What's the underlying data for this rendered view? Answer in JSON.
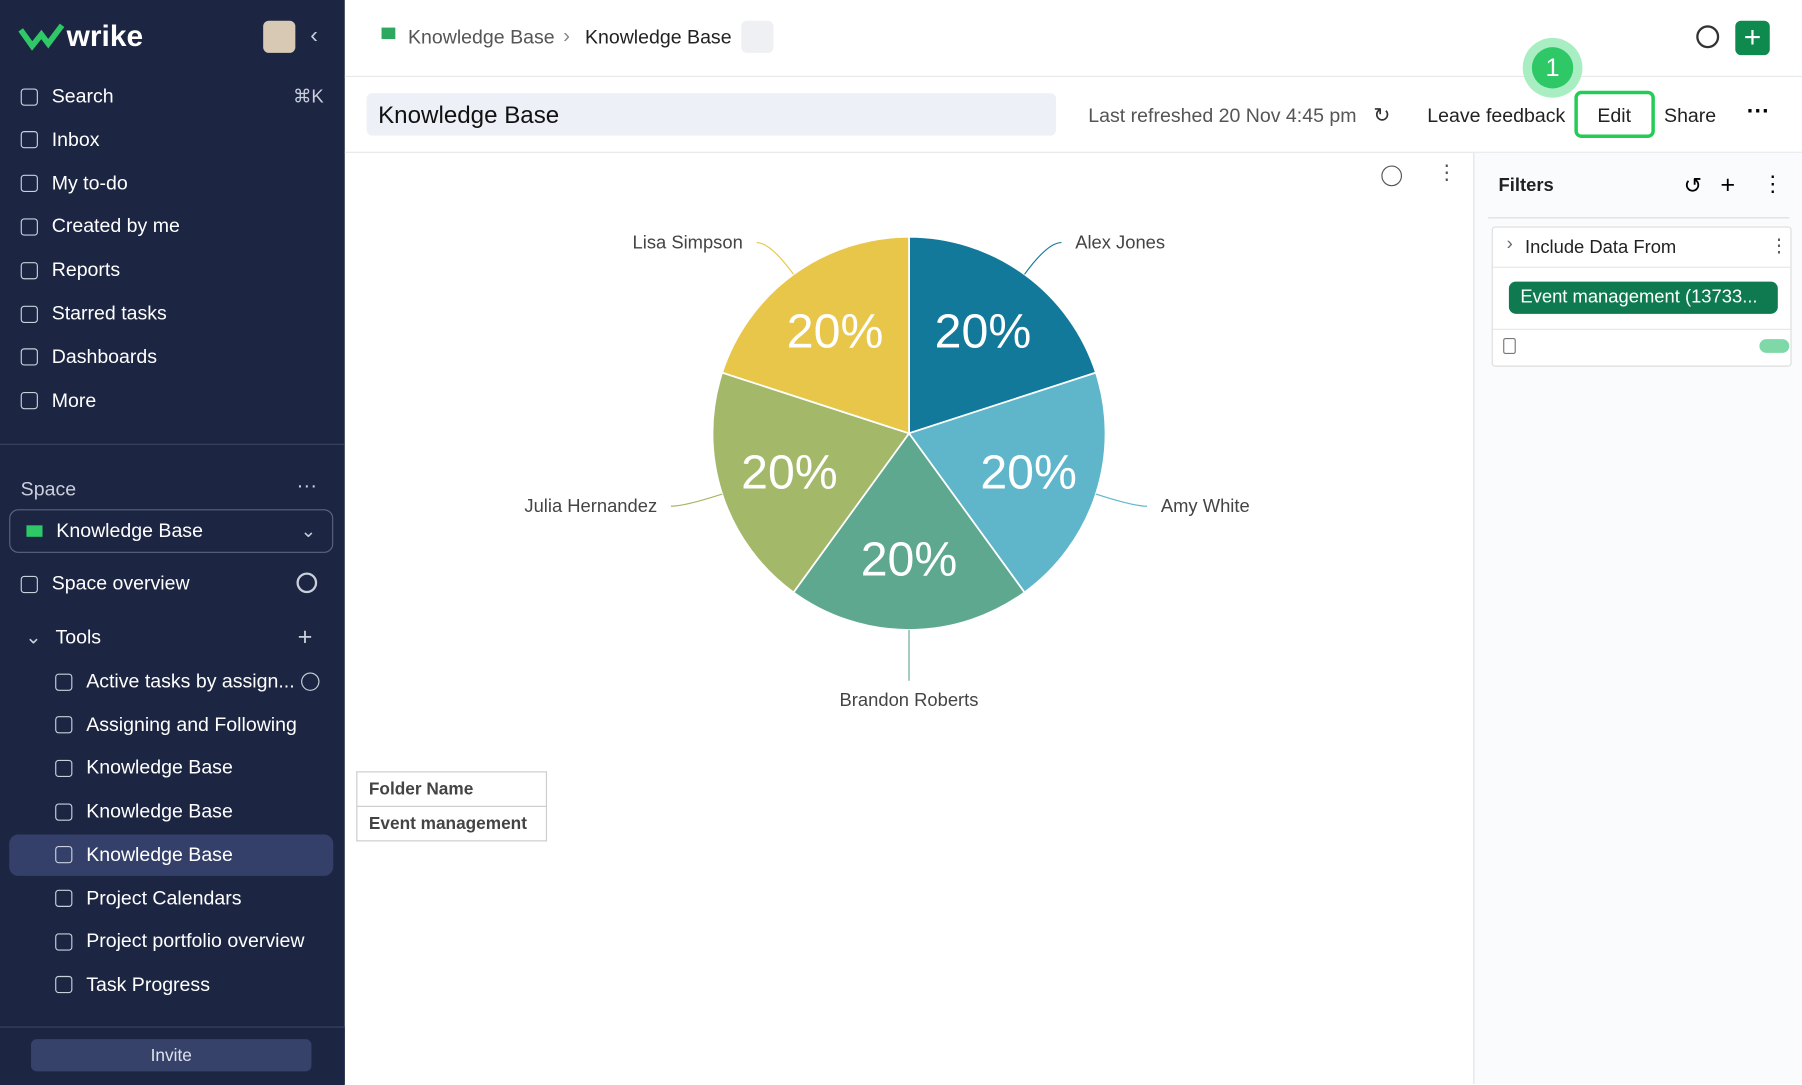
{
  "sidebar": {
    "logo": "wrike",
    "nav": [
      {
        "label": "Search",
        "shortcut": "⌘K"
      },
      {
        "label": "Inbox"
      },
      {
        "label": "My to-do"
      },
      {
        "label": "Created by me"
      },
      {
        "label": "Reports"
      },
      {
        "label": "Starred tasks"
      },
      {
        "label": "Dashboards"
      },
      {
        "label": "More"
      }
    ],
    "space_label": "Space",
    "space": "Knowledge Base",
    "space_overview": "Space overview",
    "tools_label": "Tools",
    "tools": [
      "Active tasks by assign...",
      "Assigning and Following",
      "Knowledge Base",
      "Knowledge Base",
      "Knowledge Base",
      "Project Calendars",
      "Project portfolio overview",
      "Task Progress"
    ],
    "invite": "Invite"
  },
  "header": {
    "breadcrumb": [
      "Knowledge Base",
      "Knowledge Base"
    ],
    "title": "Knowledge Base",
    "last_refreshed": "Last refreshed 20 Nov 4:45 pm",
    "actions": [
      "Leave feedback",
      "Edit",
      "Share"
    ],
    "step_badge": "1"
  },
  "chart_data": {
    "type": "pie",
    "categories": [
      "Alex Jones",
      "Amy White",
      "Brandon Roberts",
      "Julia Hernandez",
      "Lisa Simpson"
    ],
    "values": [
      20,
      20,
      20,
      20,
      20
    ],
    "value_labels": [
      "20%",
      "20%",
      "20%",
      "20%",
      "20%"
    ],
    "colors": [
      "#13799a",
      "#5fb6cb",
      "#5ea890",
      "#a4b86a",
      "#e8c64a"
    ]
  },
  "table": {
    "rows": [
      [
        "Folder Name"
      ],
      [
        "Event management"
      ]
    ]
  },
  "filters": {
    "title": "Filters",
    "section": "Include Data From",
    "chip": "Event management (13733..."
  }
}
